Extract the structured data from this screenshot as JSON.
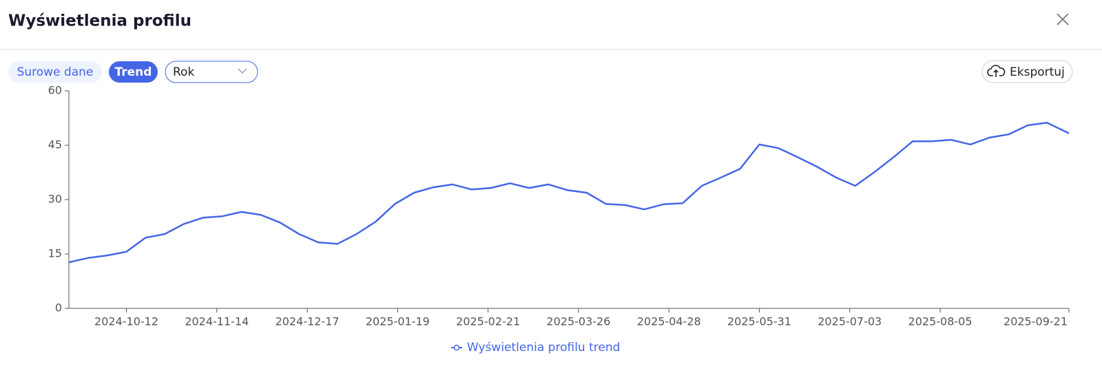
{
  "header": {
    "title": "Wyświetlenia profilu"
  },
  "toolbar": {
    "raw": "Surowe dane",
    "trend": "Trend",
    "period": "Rok",
    "export": "Eksportuj"
  },
  "chart_data": {
    "type": "line",
    "x": [
      "2024-09-21",
      "2024-09-28",
      "2024-10-05",
      "2024-10-12",
      "2024-10-19",
      "2024-10-26",
      "2024-11-02",
      "2024-11-09",
      "2024-11-16",
      "2024-11-23",
      "2024-11-30",
      "2024-12-07",
      "2024-12-14",
      "2024-12-21",
      "2024-12-28",
      "2025-01-04",
      "2025-01-11",
      "2025-01-18",
      "2025-01-25",
      "2025-02-01",
      "2025-02-08",
      "2025-02-15",
      "2025-02-22",
      "2025-03-01",
      "2025-03-08",
      "2025-03-15",
      "2025-03-22",
      "2025-03-29",
      "2025-04-05",
      "2025-04-12",
      "2025-04-19",
      "2025-04-26",
      "2025-05-03",
      "2025-05-10",
      "2025-05-17",
      "2025-05-24",
      "2025-05-31",
      "2025-06-07",
      "2025-06-14",
      "2025-06-21",
      "2025-06-28",
      "2025-07-05",
      "2025-07-12",
      "2025-07-19",
      "2025-07-26",
      "2025-08-02",
      "2025-08-09",
      "2025-08-16",
      "2025-08-23",
      "2025-08-30",
      "2025-09-06",
      "2025-09-13",
      "2025-09-21"
    ],
    "series": [
      {
        "name": "Wyświetlenia profilu trend",
        "color": "#4466e6",
        "values": [
          12.7,
          13.9,
          14.6,
          15.6,
          19.5,
          20.5,
          23.3,
          25.0,
          25.4,
          26.6,
          25.8,
          23.7,
          20.5,
          18.2,
          17.8,
          20.5,
          23.9,
          28.8,
          31.9,
          33.4,
          34.2,
          32.8,
          33.2,
          34.5,
          33.2,
          34.2,
          32.6,
          31.9,
          28.8,
          28.5,
          27.3,
          28.7,
          29.0,
          33.8,
          36.1,
          38.5,
          45.2,
          44.2,
          41.7,
          39.1,
          36.1,
          33.8,
          37.6,
          41.7,
          46.1,
          46.1,
          46.5,
          45.2,
          47.1,
          48.0,
          50.5,
          51.2,
          48.3
        ]
      }
    ],
    "xlim": [
      "2024-09-21",
      "2025-09-21"
    ],
    "xticks": [
      "2024-10-12",
      "2024-11-14",
      "2024-12-17",
      "2025-01-19",
      "2025-02-21",
      "2025-03-26",
      "2025-04-28",
      "2025-05-31",
      "2025-07-03",
      "2025-08-05",
      "2025-09-21"
    ],
    "ylim": [
      0,
      60
    ],
    "yticks": [
      0,
      15,
      30,
      45,
      60
    ],
    "grid": false,
    "legend": "bottom"
  }
}
